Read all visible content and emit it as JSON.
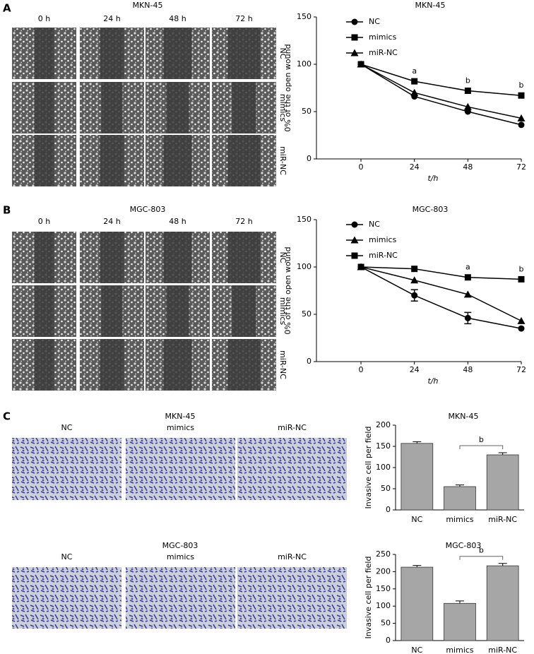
{
  "panel_labels": [
    "A",
    "B",
    "C"
  ],
  "micrographs": [
    {
      "title": "MKN-45",
      "columns": [
        "0 h",
        "24 h",
        "48 h",
        "72 h"
      ],
      "rows": [
        "NC",
        "mimics",
        "miR-NC"
      ]
    },
    {
      "title": "MGC-803",
      "columns": [
        "0 h",
        "24 h",
        "48 h",
        "72 h"
      ],
      "rows": [
        "NC",
        "mimics",
        "miR-NC"
      ]
    },
    {
      "title": "MKN-45",
      "columns": [
        "NC",
        "mimics",
        "miR-NC"
      ]
    },
    {
      "title": "MGC-803",
      "columns": [
        "NC",
        "mimics",
        "miR-NC"
      ]
    }
  ],
  "chart_data": [
    {
      "type": "line",
      "title": "MKN-45",
      "x": [
        0,
        24,
        48,
        72
      ],
      "xlim": [
        -20,
        72
      ],
      "xticks": [
        0,
        24,
        48,
        72
      ],
      "ylim": [
        0,
        150
      ],
      "yticks": [
        0,
        50,
        100,
        150
      ],
      "xlabel": "t/h",
      "ylabel": "0% of the open wound",
      "series": [
        {
          "name": "NC",
          "color": "#000000",
          "marker": "circle",
          "values": [
            100,
            66,
            50,
            36
          ]
        },
        {
          "name": "mimics",
          "color": "#000000",
          "marker": "square",
          "values": [
            100,
            82,
            72,
            67
          ]
        },
        {
          "name": "miR-NC",
          "color": "#000000",
          "marker": "triangle",
          "values": [
            100,
            70,
            55,
            43
          ]
        }
      ],
      "annotations": [
        {
          "text": "a",
          "x": 24
        },
        {
          "text": "b",
          "x": 48
        },
        {
          "text": "b",
          "x": 72
        }
      ]
    },
    {
      "type": "line",
      "title": "MGC-803",
      "x": [
        0,
        24,
        48,
        72
      ],
      "xlim": [
        -20,
        72
      ],
      "xticks": [
        0,
        24,
        48,
        72
      ],
      "ylim": [
        0,
        150
      ],
      "yticks": [
        0,
        50,
        100,
        150
      ],
      "xlabel": "t/h",
      "ylabel": "0% of the open wound",
      "series": [
        {
          "name": "NC",
          "color": "#000000",
          "marker": "circle",
          "values": [
            100,
            70,
            46,
            35
          ],
          "errors": [
            null,
            6,
            6,
            null
          ]
        },
        {
          "name": "mimics",
          "color": "#000000",
          "marker": "triangle",
          "values": [
            100,
            86,
            71,
            43
          ]
        },
        {
          "name": "miR-NC",
          "color": "#000000",
          "marker": "square",
          "values": [
            100,
            98,
            89,
            87
          ]
        }
      ],
      "annotations": [
        {
          "text": "a",
          "x": 48
        },
        {
          "text": "b",
          "x": 72
        }
      ]
    },
    {
      "type": "bar",
      "title": "MKN-45",
      "categories": [
        "NC",
        "mimics",
        "miR-NC"
      ],
      "values": [
        157,
        55,
        130
      ],
      "errors": [
        4,
        4,
        5
      ],
      "color": "#a6a6a6",
      "ylim": [
        0,
        200
      ],
      "yticks": [
        0,
        50,
        100,
        150,
        200
      ],
      "ylabel": "Invasive cell per field",
      "annotation": {
        "text": "b",
        "categories": [
          "mimics",
          "miR-NC"
        ]
      }
    },
    {
      "type": "bar",
      "title": "MGC-803",
      "categories": [
        "NC",
        "mimics",
        "miR-NC"
      ],
      "values": [
        213,
        108,
        217
      ],
      "errors": [
        5,
        7,
        7
      ],
      "color": "#a6a6a6",
      "ylim": [
        0,
        250
      ],
      "yticks": [
        0,
        50,
        100,
        150,
        200,
        250
      ],
      "ylabel": "Invasive cell per field",
      "annotation": {
        "text": "b",
        "categories": [
          "mimics",
          "miR-NC"
        ]
      }
    }
  ]
}
